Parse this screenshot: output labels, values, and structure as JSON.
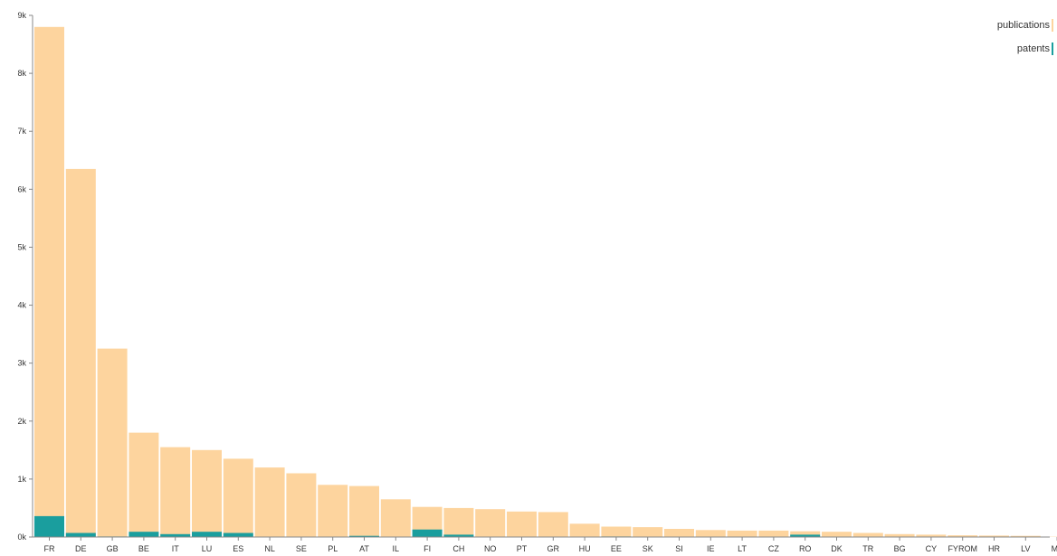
{
  "chart_data": {
    "type": "bar",
    "stacked": true,
    "title": "",
    "xlabel": "",
    "ylabel": "",
    "ylim": [
      0,
      9000
    ],
    "yticks": [
      0,
      1000,
      2000,
      3000,
      4000,
      5000,
      6000,
      7000,
      8000,
      9000
    ],
    "ytick_labels": [
      "0k",
      "1k",
      "2k",
      "3k",
      "4k",
      "5k",
      "6k",
      "7k",
      "8k",
      "9k"
    ],
    "grid": false,
    "legend_position": "top-right",
    "categories": [
      "FR",
      "DE",
      "GB",
      "BE",
      "IT",
      "LU",
      "ES",
      "NL",
      "SE",
      "PL",
      "AT",
      "IL",
      "FI",
      "CH",
      "NO",
      "PT",
      "GR",
      "HU",
      "EE",
      "SK",
      "SI",
      "IE",
      "LT",
      "CZ",
      "RO",
      "DK",
      "TR",
      "BG",
      "CY",
      "FYROM",
      "HR",
      "LV",
      "MT"
    ],
    "series": [
      {
        "name": "publications",
        "color": "#fdd49e",
        "values": [
          8800,
          6350,
          3250,
          1800,
          1550,
          1500,
          1350,
          1200,
          1100,
          900,
          880,
          650,
          520,
          500,
          480,
          440,
          430,
          230,
          180,
          170,
          140,
          120,
          110,
          110,
          100,
          90,
          70,
          50,
          40,
          30,
          25,
          20,
          5
        ]
      },
      {
        "name": "patents",
        "color": "#1a9e9e",
        "values": [
          360,
          70,
          10,
          90,
          50,
          90,
          70,
          5,
          5,
          5,
          20,
          5,
          130,
          40,
          5,
          5,
          5,
          5,
          10,
          5,
          5,
          5,
          5,
          5,
          40,
          5,
          5,
          5,
          5,
          5,
          5,
          5,
          0
        ]
      }
    ]
  }
}
